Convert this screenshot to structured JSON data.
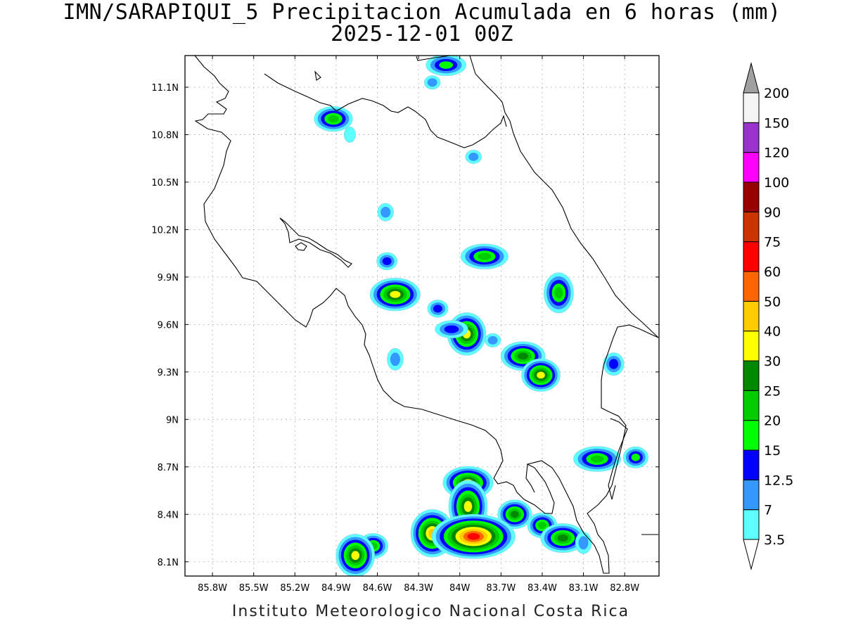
{
  "title": "IMN/SARAPIQUI_5 Precipitacion Acumulada en 6 horas (mm)",
  "subtitle": "2025-12-01 00Z",
  "footer": "Instituto Meteorologico Nacional Costa Rica",
  "map": {
    "lon_range": [
      -86.0,
      -82.55
    ],
    "lat_range": [
      8.01,
      11.3
    ],
    "lon_ticks": [
      "85.8W",
      "85.5W",
      "85.2W",
      "84.9W",
      "84.6W",
      "84.3W",
      "84W",
      "83.7W",
      "83.4W",
      "83.1W",
      "82.8W"
    ],
    "lat_ticks": [
      "8.1N",
      "8.4N",
      "8.7N",
      "9N",
      "9.3N",
      "9.6N",
      "9.9N",
      "10.2N",
      "10.5N",
      "10.8N",
      "11.1N"
    ],
    "gridlines": true
  },
  "colorbar": {
    "labels": [
      "3.5",
      "7",
      "12.5",
      "15",
      "20",
      "25",
      "30",
      "40",
      "50",
      "60",
      "75",
      "90",
      "100",
      "120",
      "150",
      "200"
    ],
    "colors": [
      "#5effff",
      "#3399ff",
      "#0000ff",
      "#00ff00",
      "#00cc00",
      "#008800",
      "#ffff00",
      "#ffcc00",
      "#ff6600",
      "#ff0000",
      "#cc3300",
      "#990000",
      "#ff00ff",
      "#9933cc",
      "#f5f5f5",
      "#a0a0a0"
    ]
  },
  "precip_cells": [
    {
      "lon": -84.1,
      "lat": 11.24,
      "max_mm": 15
    },
    {
      "lon": -84.2,
      "lat": 11.13,
      "max_mm": 7
    },
    {
      "lon": -84.92,
      "lat": 10.9,
      "max_mm": 20
    },
    {
      "lon": -84.8,
      "lat": 10.8,
      "max_mm": 3.5
    },
    {
      "lon": -83.9,
      "lat": 10.66,
      "max_mm": 7
    },
    {
      "lon": -84.54,
      "lat": 10.31,
      "max_mm": 7
    },
    {
      "lon": -83.82,
      "lat": 10.03,
      "max_mm": 20
    },
    {
      "lon": -84.53,
      "lat": 10.0,
      "max_mm": 12.5
    },
    {
      "lon": -84.47,
      "lat": 9.79,
      "max_mm": 30
    },
    {
      "lon": -83.28,
      "lat": 9.8,
      "max_mm": 20
    },
    {
      "lon": -84.16,
      "lat": 9.7,
      "max_mm": 12.5
    },
    {
      "lon": -83.95,
      "lat": 9.54,
      "max_mm": 30
    },
    {
      "lon": -84.06,
      "lat": 9.57,
      "max_mm": 12.5
    },
    {
      "lon": -83.76,
      "lat": 9.5,
      "max_mm": 7
    },
    {
      "lon": -83.54,
      "lat": 9.4,
      "max_mm": 25
    },
    {
      "lon": -84.47,
      "lat": 9.38,
      "max_mm": 7
    },
    {
      "lon": -83.41,
      "lat": 9.28,
      "max_mm": 30
    },
    {
      "lon": -82.88,
      "lat": 9.35,
      "max_mm": 12.5
    },
    {
      "lon": -83.0,
      "lat": 8.75,
      "max_mm": 20
    },
    {
      "lon": -82.72,
      "lat": 8.76,
      "max_mm": 15
    },
    {
      "lon": -83.94,
      "lat": 8.6,
      "max_mm": 30
    },
    {
      "lon": -83.94,
      "lat": 8.45,
      "max_mm": 30
    },
    {
      "lon": -83.6,
      "lat": 8.4,
      "max_mm": 25
    },
    {
      "lon": -84.2,
      "lat": 8.28,
      "max_mm": 40
    },
    {
      "lon": -83.9,
      "lat": 8.26,
      "max_mm": 60
    },
    {
      "lon": -83.4,
      "lat": 8.33,
      "max_mm": 20
    },
    {
      "lon": -83.25,
      "lat": 8.25,
      "max_mm": 25
    },
    {
      "lon": -83.1,
      "lat": 8.22,
      "max_mm": 7
    },
    {
      "lon": -84.63,
      "lat": 8.2,
      "max_mm": 20
    },
    {
      "lon": -84.76,
      "lat": 8.14,
      "max_mm": 30
    }
  ]
}
